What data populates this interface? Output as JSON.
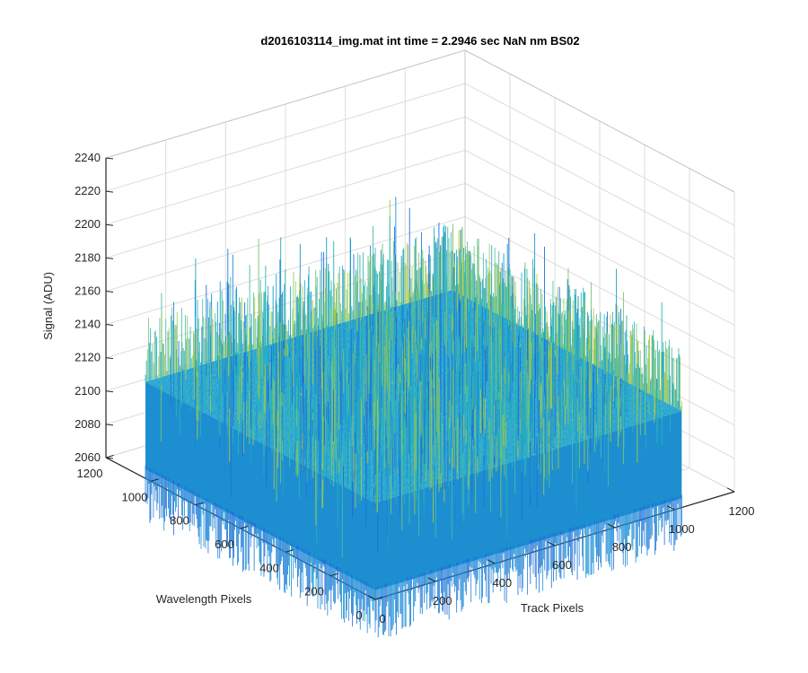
{
  "chart_data": {
    "type": "surface3d",
    "title": "d2016103114_img.mat int time = 2.2946 sec  NaN nm BS02",
    "xlabel": "Track Pixels",
    "ylabel": "Wavelength Pixels",
    "zlabel": "Signal (ADU)",
    "xlim": [
      0,
      1200
    ],
    "ylim": [
      0,
      1200
    ],
    "zlim": [
      2060,
      2240
    ],
    "xticks": [
      "0",
      "200",
      "400",
      "600",
      "800",
      "1000",
      "1200"
    ],
    "yticks": [
      "0",
      "200",
      "400",
      "600",
      "800",
      "1000",
      "1200"
    ],
    "zticks": [
      "2060",
      "2080",
      "2100",
      "2120",
      "2140",
      "2160",
      "2180",
      "2200",
      "2220",
      "2240"
    ],
    "grid": true,
    "surface": {
      "x_range": [
        0,
        1024
      ],
      "y_range": [
        0,
        1024
      ],
      "z_mean": 2118,
      "z_min": 2065,
      "z_max": 2190,
      "colormap": "parula"
    }
  },
  "colors": {
    "axis": "#262626",
    "grid": "#dcdcdc",
    "surface_low": "#1f6fd6",
    "surface_mid": "#21a8c8",
    "surface_high": "#9ec64a"
  }
}
